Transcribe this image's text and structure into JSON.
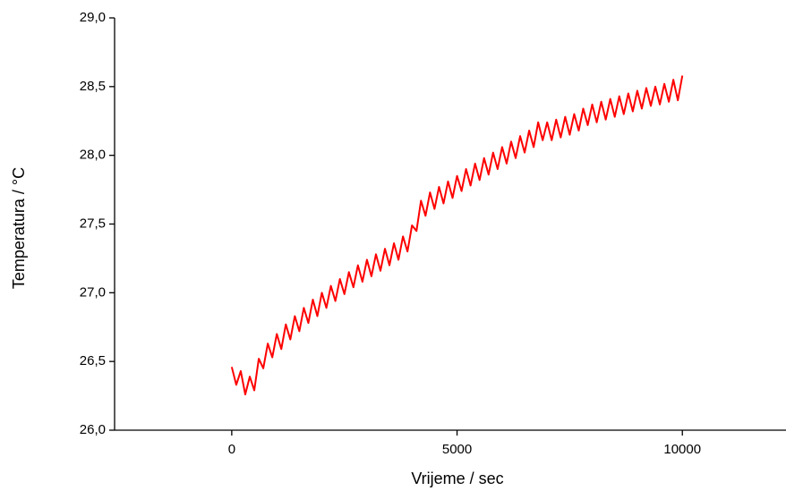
{
  "chart_data": {
    "type": "line",
    "x_label": "Vrijeme  / sec",
    "y_label": "Temperatura / °C",
    "color": "#ff0000",
    "xlim": [
      -2600,
      12300
    ],
    "ylim": [
      26,
      29
    ],
    "xticks": [
      0,
      5000,
      10000
    ],
    "yticks": [
      {
        "value": 26,
        "label": "26,0"
      },
      {
        "value": 26.5,
        "label": "26,5"
      },
      {
        "value": 27,
        "label": "27,0"
      },
      {
        "value": 27.5,
        "label": "27,5"
      },
      {
        "value": 28,
        "label": "28,0"
      },
      {
        "value": 28.5,
        "label": "28,5"
      },
      {
        "value": 29,
        "label": "29,0"
      }
    ],
    "x": [
      0,
      100,
      200,
      300,
      400,
      500,
      600,
      700,
      800,
      900,
      1000,
      1100,
      1200,
      1300,
      1400,
      1500,
      1600,
      1700,
      1800,
      1900,
      2000,
      2100,
      2200,
      2300,
      2400,
      2500,
      2600,
      2700,
      2800,
      2900,
      3000,
      3100,
      3200,
      3300,
      3400,
      3500,
      3600,
      3700,
      3800,
      3900,
      4000,
      4100,
      4200,
      4300,
      4400,
      4500,
      4600,
      4700,
      4800,
      4900,
      5000,
      5100,
      5200,
      5300,
      5400,
      5500,
      5600,
      5700,
      5800,
      5900,
      6000,
      6100,
      6200,
      6300,
      6400,
      6500,
      6600,
      6700,
      6800,
      6900,
      7000,
      7100,
      7200,
      7300,
      7400,
      7500,
      7600,
      7700,
      7800,
      7900,
      8000,
      8100,
      8200,
      8300,
      8400,
      8500,
      8600,
      8700,
      8800,
      8900,
      9000,
      9100,
      9200,
      9300,
      9400,
      9500,
      9600,
      9700,
      9800,
      9900,
      10000
    ],
    "values": [
      26.46,
      26.33,
      26.43,
      26.26,
      26.39,
      26.29,
      26.52,
      26.45,
      26.63,
      26.53,
      26.7,
      26.59,
      26.77,
      26.66,
      26.83,
      26.72,
      26.89,
      26.78,
      26.95,
      26.83,
      27.0,
      26.89,
      27.05,
      26.94,
      27.1,
      26.99,
      27.15,
      27.04,
      27.2,
      27.08,
      27.24,
      27.12,
      27.28,
      27.16,
      27.32,
      27.2,
      27.36,
      27.24,
      27.41,
      27.3,
      27.49,
      27.45,
      27.67,
      27.56,
      27.73,
      27.61,
      27.77,
      27.65,
      27.81,
      27.69,
      27.85,
      27.74,
      27.9,
      27.78,
      27.94,
      27.82,
      27.98,
      27.86,
      28.02,
      27.9,
      28.06,
      27.94,
      28.1,
      27.98,
      28.14,
      28.02,
      28.18,
      28.06,
      28.24,
      28.11,
      28.24,
      28.11,
      28.26,
      28.13,
      28.28,
      28.15,
      28.3,
      28.18,
      28.34,
      28.22,
      28.37,
      28.24,
      28.39,
      28.26,
      28.41,
      28.28,
      28.43,
      28.3,
      28.45,
      28.32,
      28.47,
      28.34,
      28.49,
      28.36,
      28.5,
      28.37,
      28.52,
      28.39,
      28.55,
      28.4,
      28.58
    ]
  }
}
